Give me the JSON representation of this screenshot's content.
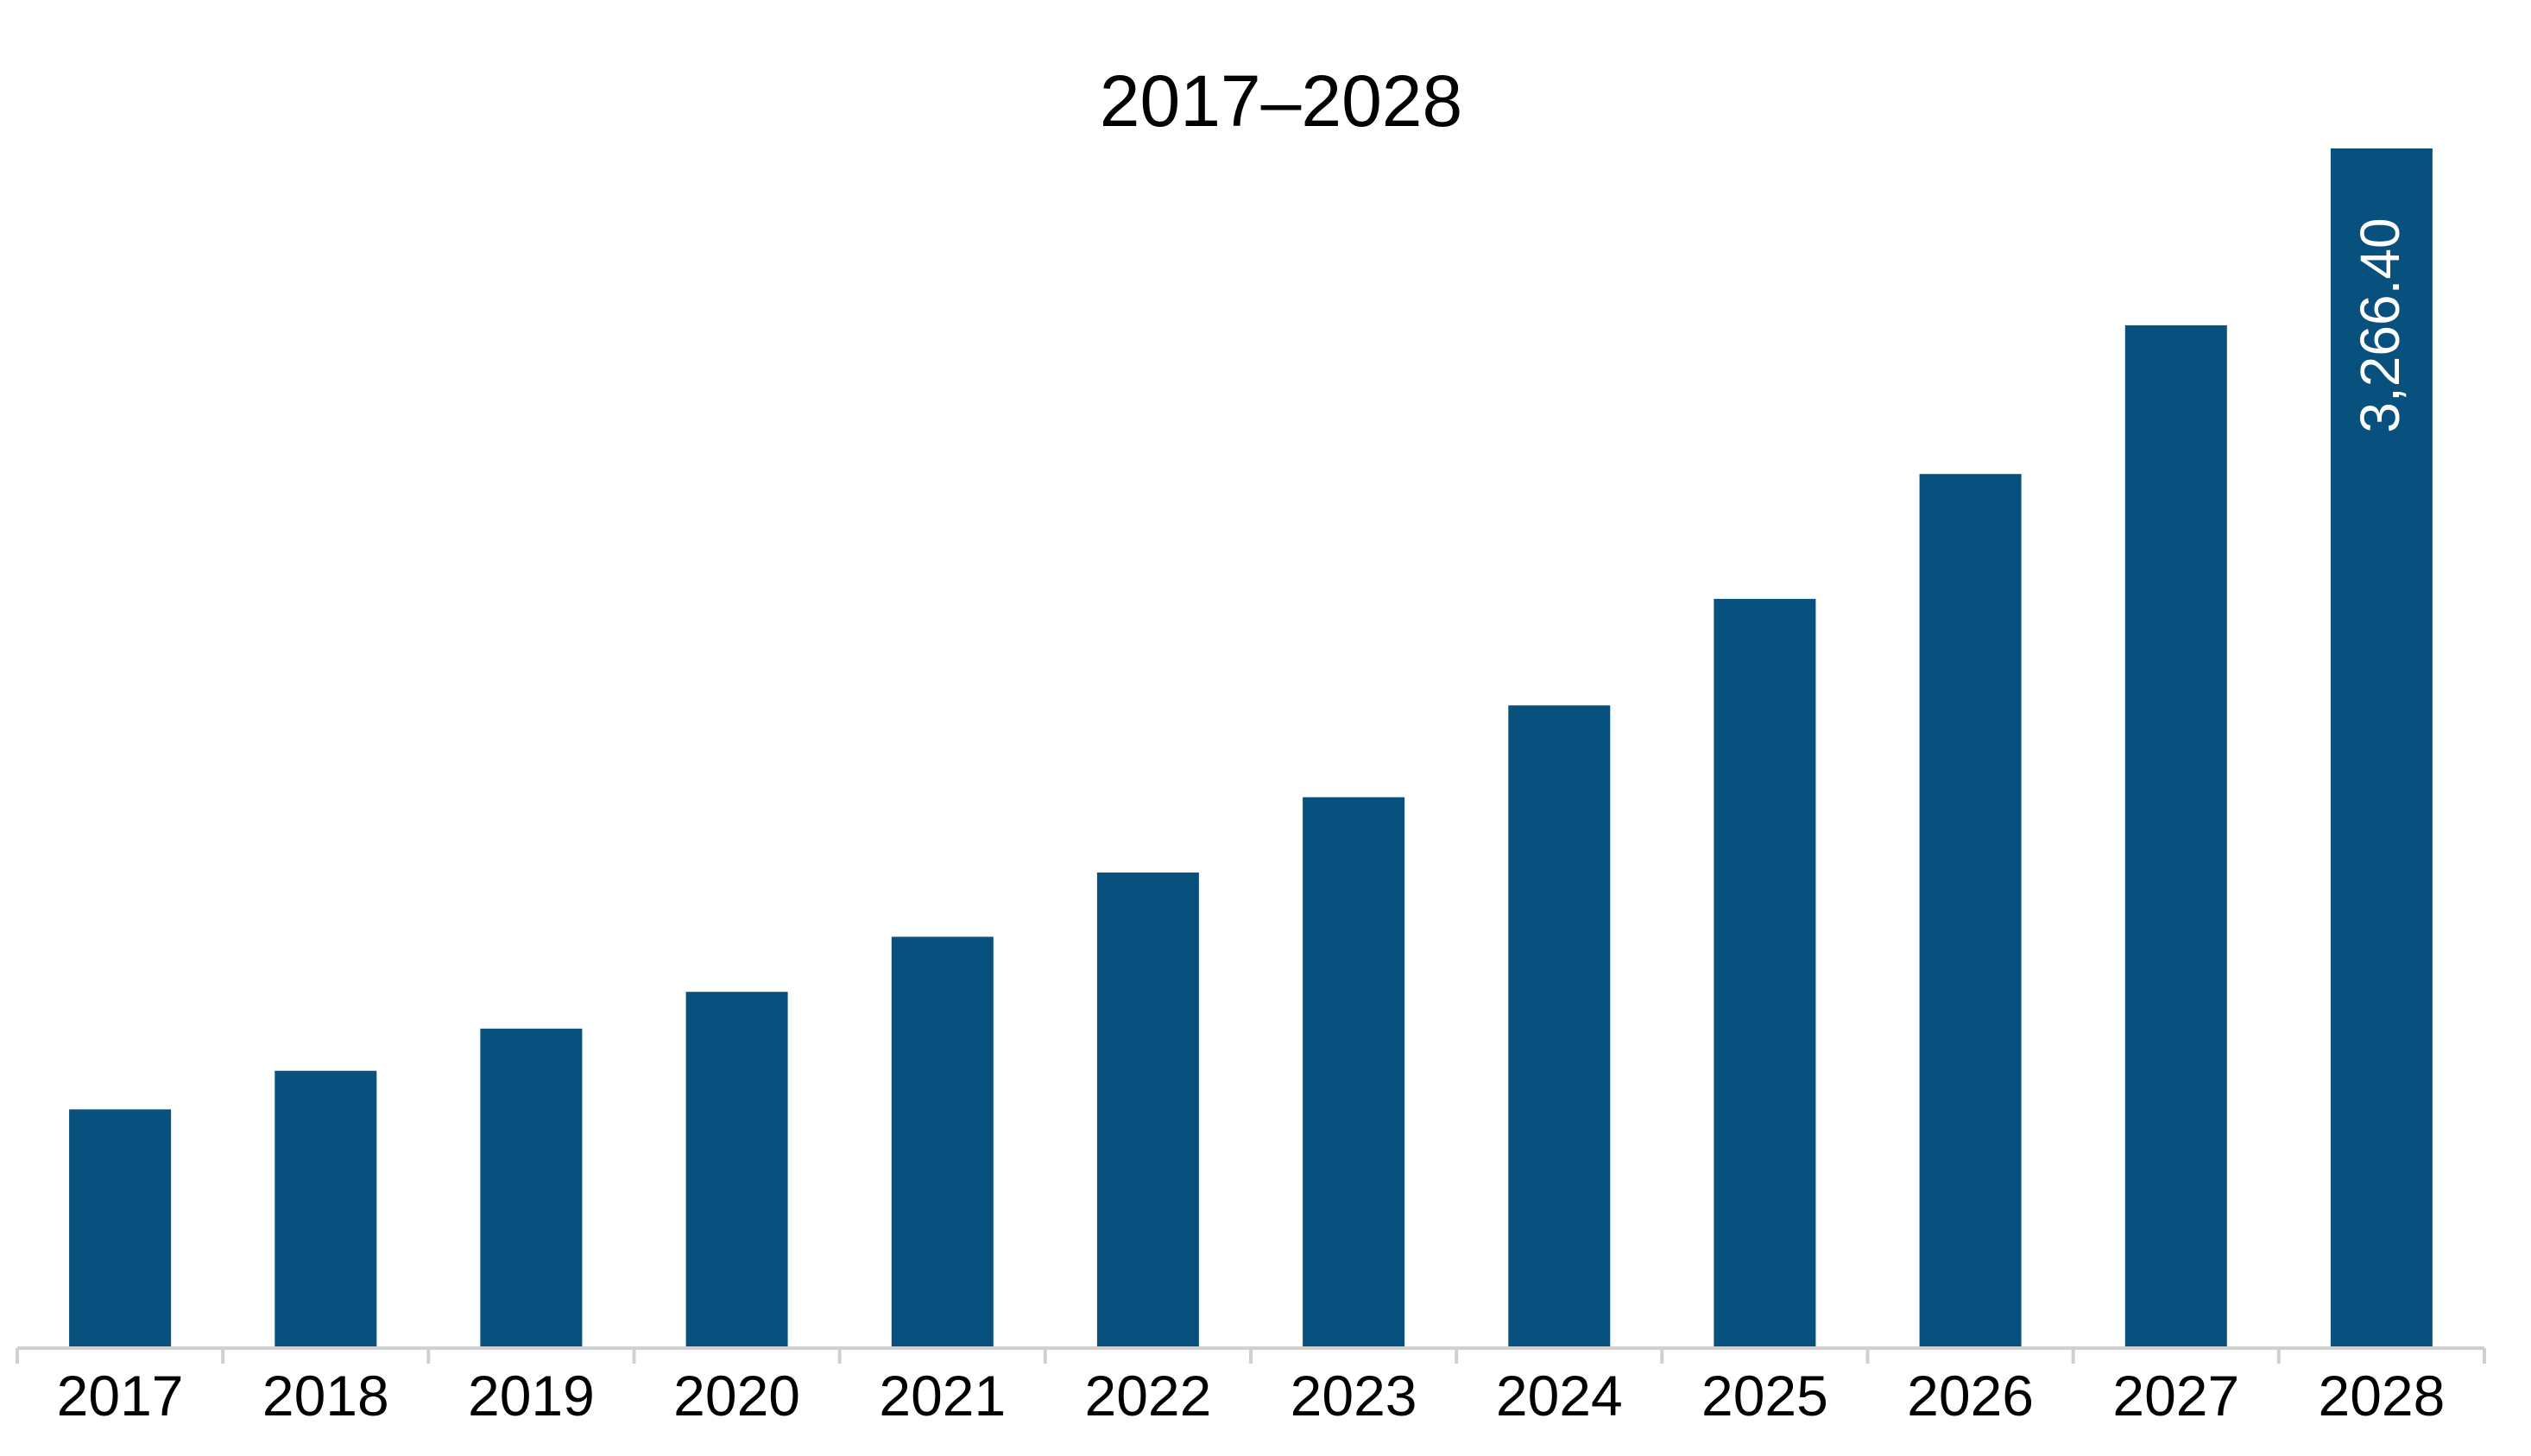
{
  "chart_data": {
    "type": "bar",
    "title": "2017–2028",
    "xlabel": "",
    "ylabel": "",
    "categories": [
      "2017",
      "2018",
      "2019",
      "2020",
      "2021",
      "2022",
      "2023",
      "2024",
      "2025",
      "2026",
      "2027",
      "2028"
    ],
    "values": [
      650,
      755,
      870,
      970,
      1120,
      1295,
      1500,
      1750,
      2040,
      2380,
      2785,
      3266.4
    ],
    "data_labels": [
      "",
      "",
      "",
      "",
      "",
      "",
      "",
      "",
      "",
      "",
      "",
      "3,266.40"
    ],
    "ylim": [
      0,
      3266.4
    ],
    "grid": false,
    "legend": "none",
    "y_axis_visible": false
  },
  "colors": {
    "bar": "#08517e",
    "axis": "#d0d0d0",
    "text": "#000000",
    "data_label": "#ffffff"
  }
}
